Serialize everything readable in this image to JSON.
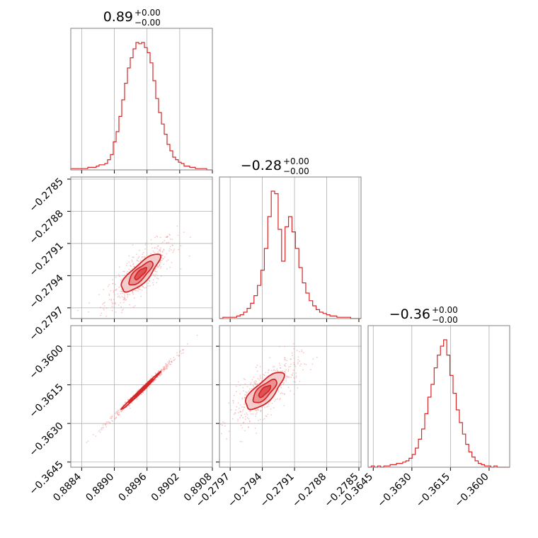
{
  "colors": {
    "accent": "#d62728",
    "fill_outer": "#f2c7c8",
    "fill_mid": "#e8888a",
    "fill_inner": "#d9474a",
    "scatter": "#ef9a9b"
  },
  "chart_data": {
    "type": "corner",
    "params": [
      {
        "id": "p0",
        "title_value": "0.89",
        "title_plus": "+0.00",
        "title_minus": "−0.00",
        "range": [
          0.8882,
          0.8908
        ],
        "ticks": [
          0.8884,
          0.889,
          0.8896,
          0.8902,
          0.8908
        ],
        "tick_labels": [
          "0.8884",
          "0.8890",
          "0.8896",
          "0.8902",
          "0.8908"
        ],
        "mean": 0.88948,
        "sd": 0.00022
      },
      {
        "id": "p1",
        "title_value": "−0.28",
        "title_plus": "+0.00",
        "title_minus": "−0.00",
        "range": [
          -0.2798,
          -0.27848
        ],
        "ticks": [
          -0.2797,
          -0.2794,
          -0.2791,
          -0.2788,
          -0.2785
        ],
        "tick_labels": [
          "−0.2797",
          "−0.2794",
          "−0.2791",
          "−0.2788",
          "−0.2785"
        ],
        "mean": -0.27938,
        "sd": 0.00011
      },
      {
        "id": "p2",
        "title_value": "−0.36",
        "title_plus": "+0.00",
        "title_minus": "−0.00",
        "range": [
          -0.3647,
          -0.3592
        ],
        "ticks": [
          -0.3645,
          -0.363,
          -0.3615,
          -0.36
        ],
        "tick_labels": [
          "−0.3645",
          "−0.3630",
          "−0.3615",
          "−0.3600"
        ],
        "mean": -0.36175,
        "sd": 0.00045
      }
    ],
    "histograms": [
      {
        "param": "p0",
        "counts": [
          1,
          1,
          1,
          1,
          1,
          1,
          2,
          2,
          2,
          3,
          4,
          4,
          5,
          8,
          12,
          22,
          30,
          42,
          55,
          68,
          80,
          88,
          95,
          100,
          99,
          100,
          96,
          92,
          84,
          70,
          56,
          45,
          36,
          28,
          20,
          15,
          10,
          8,
          6,
          5,
          3,
          3,
          2,
          2,
          1,
          1,
          1,
          1,
          0,
          0
        ]
      },
      {
        "param": "p1",
        "counts": [
          0,
          1,
          1,
          1,
          1,
          2,
          3,
          5,
          8,
          12,
          18,
          26,
          38,
          55,
          80,
          100,
          98,
          70,
          45,
          72,
          80,
          68,
          55,
          40,
          28,
          20,
          14,
          10,
          7,
          5,
          4,
          3,
          2,
          2,
          1,
          1,
          1,
          1,
          0,
          0,
          0
        ]
      },
      {
        "param": "p2",
        "counts": [
          0,
          1,
          0,
          1,
          0,
          1,
          1,
          2,
          2,
          3,
          3,
          4,
          5,
          7,
          10,
          15,
          22,
          30,
          42,
          55,
          65,
          78,
          88,
          95,
          100,
          88,
          72,
          58,
          45,
          35,
          26,
          18,
          12,
          8,
          5,
          3,
          2,
          1,
          1,
          0,
          1,
          0,
          0,
          0,
          0
        ]
      }
    ],
    "pairs": [
      {
        "x": "p0",
        "y": "p1",
        "rho": 0.8
      },
      {
        "x": "p0",
        "y": "p2",
        "rho": 0.995
      },
      {
        "x": "p1",
        "y": "p2",
        "rho": 0.75
      }
    ],
    "contour_levels": [
      0.5,
      1.0,
      1.6
    ],
    "grid": true,
    "legend": "none"
  }
}
